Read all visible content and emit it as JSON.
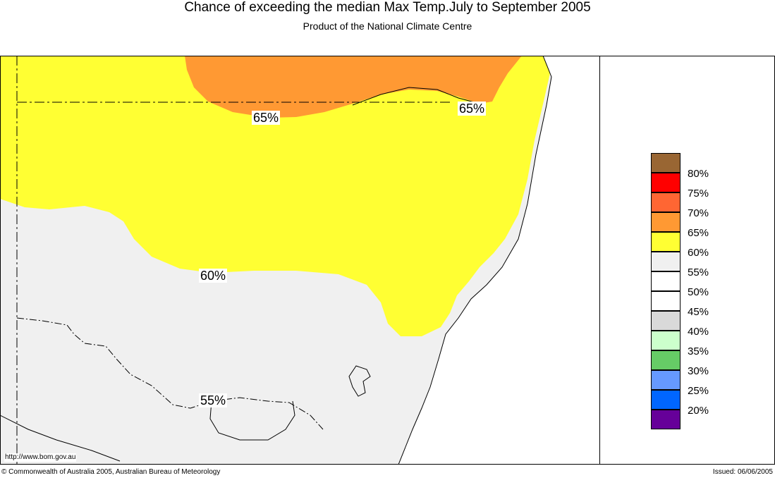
{
  "title": "Chance of exceeding the median Max Temp.July to September 2005",
  "subtitle": "Product of the National Climate Centre",
  "colors": {
    "above65": "#ff9933",
    "above60": "#ffff33",
    "above55": "#f0f0f0",
    "ocean": "#ffffff"
  },
  "contour_labels": [
    {
      "text": "65%",
      "id": "contour-label-65-west"
    },
    {
      "text": "65%",
      "id": "contour-label-65-east"
    },
    {
      "text": "60%",
      "id": "contour-label-60"
    },
    {
      "text": "55%",
      "id": "contour-label-55"
    }
  ],
  "legend": {
    "boundaries": [
      "80%",
      "75%",
      "70%",
      "65%",
      "60%",
      "55%",
      "50%",
      "45%",
      "40%",
      "35%",
      "30%",
      "25%",
      "20%"
    ],
    "swatch_colors": [
      "#996633",
      "#ff0000",
      "#ff6633",
      "#ff9933",
      "#ffff33",
      "#f0f0f0",
      "#ffffff",
      "#ffffff",
      "#d9d9d9",
      "#ccffcc",
      "#66cc66",
      "#6699ff",
      "#0066ff",
      "#660099"
    ]
  },
  "url_text": "http://www.bom.gov.au",
  "footer": {
    "copyright": "© Commonwealth of Australia 2005, Australian Bureau of Meteorology",
    "issued": "Issued: 06/06/2005"
  }
}
